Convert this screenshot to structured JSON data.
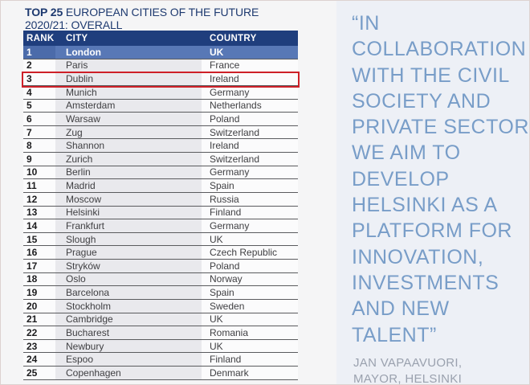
{
  "title": {
    "prefix": "TOP 25",
    "rest": " EUROPEAN CITIES OF THE FUTURE",
    "line2": "2020/21: OVERALL"
  },
  "table": {
    "columns": [
      "RANK",
      "CITY",
      "COUNTRY"
    ],
    "highlight_row_rank": "1",
    "outlined_row_rank": "3",
    "rows": [
      {
        "rank": "1",
        "city": "London",
        "country": "UK"
      },
      {
        "rank": "2",
        "city": "Paris",
        "country": "France"
      },
      {
        "rank": "3",
        "city": "Dublin",
        "country": "Ireland"
      },
      {
        "rank": "4",
        "city": "Munich",
        "country": "Germany"
      },
      {
        "rank": "5",
        "city": "Amsterdam",
        "country": "Netherlands"
      },
      {
        "rank": "6",
        "city": "Warsaw",
        "country": "Poland"
      },
      {
        "rank": "7",
        "city": "Zug",
        "country": "Switzerland"
      },
      {
        "rank": "8",
        "city": "Shannon",
        "country": "Ireland"
      },
      {
        "rank": "9",
        "city": "Zurich",
        "country": "Switzerland"
      },
      {
        "rank": "10",
        "city": "Berlin",
        "country": "Germany"
      },
      {
        "rank": "11",
        "city": "Madrid",
        "country": "Spain"
      },
      {
        "rank": "12",
        "city": "Moscow",
        "country": "Russia"
      },
      {
        "rank": "13",
        "city": "Helsinki",
        "country": "Finland"
      },
      {
        "rank": "14",
        "city": "Frankfurt",
        "country": "Germany"
      },
      {
        "rank": "15",
        "city": "Slough",
        "country": "UK"
      },
      {
        "rank": "16",
        "city": "Prague",
        "country": "Czech Republic"
      },
      {
        "rank": "17",
        "city": "Stryków",
        "country": "Poland"
      },
      {
        "rank": "18",
        "city": "Oslo",
        "country": "Norway"
      },
      {
        "rank": "19",
        "city": "Barcelona",
        "country": "Spain"
      },
      {
        "rank": "20",
        "city": "Stockholm",
        "country": "Sweden"
      },
      {
        "rank": "21",
        "city": "Cambridge",
        "country": "UK"
      },
      {
        "rank": "22",
        "city": "Bucharest",
        "country": "Romania"
      },
      {
        "rank": "23",
        "city": "Newbury",
        "country": "UK"
      },
      {
        "rank": "24",
        "city": "Espoo",
        "country": "Finland"
      },
      {
        "rank": "25",
        "city": "Copenhagen",
        "country": "Denmark"
      }
    ]
  },
  "quote": {
    "text": "“IN\nCOLLABORATION\nWITH THE CIVIL\nSOCIETY AND\nPRIVATE SECTOR,\nWE AIM TO\nDEVELOP\nHELSINKI AS A\nPLATFORM FOR\nINNOVATION,\nINVESTMENTS\nAND NEW\nTALENT”",
    "attribution": "JAN VAPAAVUORI,\nMAYOR, HELSINKI"
  },
  "colors": {
    "header_navy": "#1f3e7d",
    "highlight_blue": "#5878b6",
    "highlight_rank_blue": "#4b6baa",
    "outline_red": "#ce2028",
    "title_navy": "#1e3a70",
    "quote_blue": "#789dc8",
    "attribution_gray": "#9aa1ae",
    "city_band_gray": "#e9e9ed",
    "right_panel_bg": "#edf0f6"
  }
}
